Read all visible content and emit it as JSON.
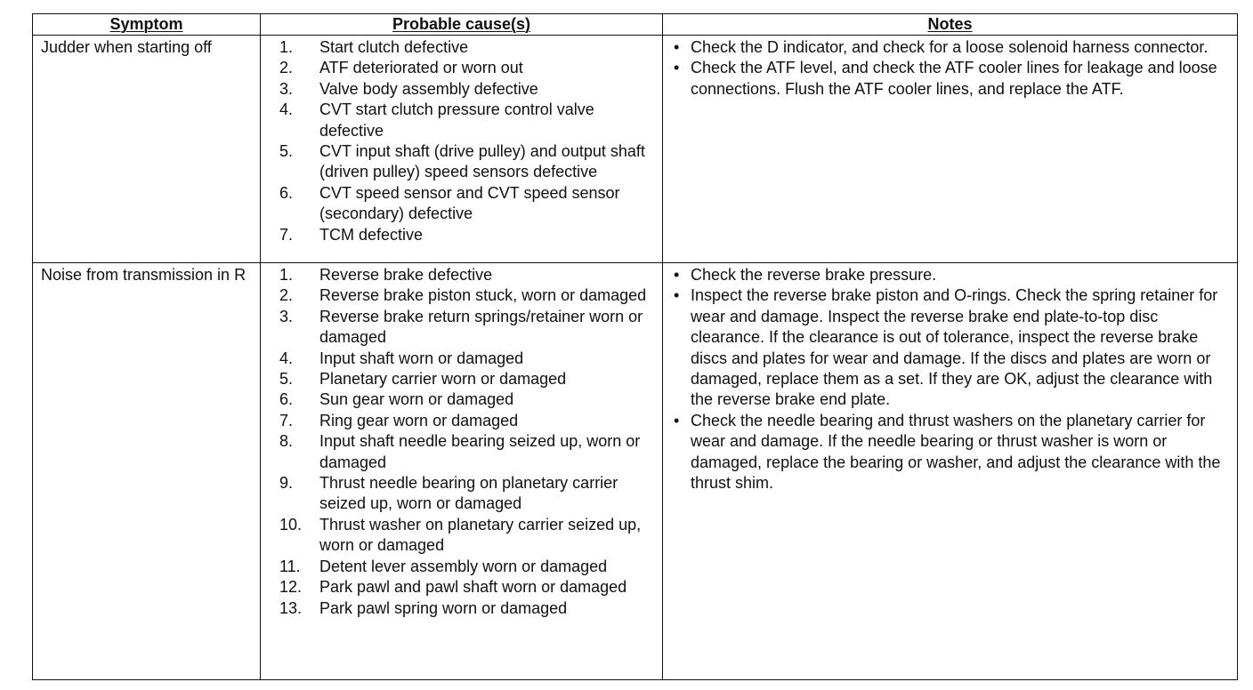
{
  "headers": {
    "symptom": "Symptom",
    "causes": "Probable cause(s)",
    "notes": "Notes"
  },
  "rows": [
    {
      "symptom": "Judder when starting off",
      "causes": [
        {
          "num": "1.",
          "text": "Start clutch defective"
        },
        {
          "num": "2.",
          "text": "ATF deteriorated or worn out"
        },
        {
          "num": "3.",
          "text": "Valve body assembly defective"
        },
        {
          "num": "4.",
          "text": "CVT start clutch pressure control valve defective"
        },
        {
          "num": "5.",
          "text": "CVT input shaft (drive pulley) and output shaft (driven pulley) speed sensors defective"
        },
        {
          "num": "6.",
          "text": "CVT speed sensor and CVT speed sensor (secondary) defective"
        },
        {
          "num": "7.",
          "text": "TCM defective"
        }
      ],
      "notes": [
        "Check the D indicator, and check for a loose solenoid harness connector.",
        "Check the ATF level, and check the ATF cooler lines for leakage and loose connections. Flush the ATF cooler lines, and replace the ATF."
      ]
    },
    {
      "symptom": "Noise from transmission in R",
      "causes": [
        {
          "num": "1.",
          "text": "Reverse brake defective"
        },
        {
          "num": "2.",
          "text": "Reverse brake piston stuck, worn or damaged"
        },
        {
          "num": "3.",
          "text": "Reverse brake return springs/retainer worn or damaged"
        },
        {
          "num": "4.",
          "text": "Input shaft worn or damaged"
        },
        {
          "num": "5.",
          "text": "Planetary carrier worn or damaged"
        },
        {
          "num": "6.",
          "text": "Sun gear worn or damaged"
        },
        {
          "num": "7.",
          "text": "Ring gear worn or damaged"
        },
        {
          "num": "8.",
          "text": "Input shaft needle bearing seized up, worn or damaged"
        },
        {
          "num": "9.",
          "text": "Thrust needle bearing on planetary carrier seized up, worn or damaged"
        },
        {
          "num": "10.",
          "text": "Thrust washer on planetary carrier seized up, worn or damaged"
        },
        {
          "num": "11.",
          "text": "Detent lever assembly worn or damaged"
        },
        {
          "num": "12.",
          "text": "Park pawl and pawl shaft worn or damaged"
        },
        {
          "num": "13.",
          "text": "Park pawl spring worn or damaged"
        }
      ],
      "notes": [
        "Check the reverse brake pressure.",
        "Inspect the reverse brake piston and O-rings. Check the spring retainer for wear and damage. Inspect the reverse brake end plate-to-top disc clearance. If the clearance is out of tolerance, inspect the reverse brake discs and plates for wear and damage. If the discs and plates are worn or damaged, replace them as a set. If they are OK, adjust the clearance with the reverse brake end plate.",
        "Check the needle bearing and thrust washers on the planetary carrier for wear and damage. If the needle bearing or thrust washer is worn or damaged, replace the bearing or washer, and adjust the clearance with the thrust shim."
      ]
    }
  ]
}
